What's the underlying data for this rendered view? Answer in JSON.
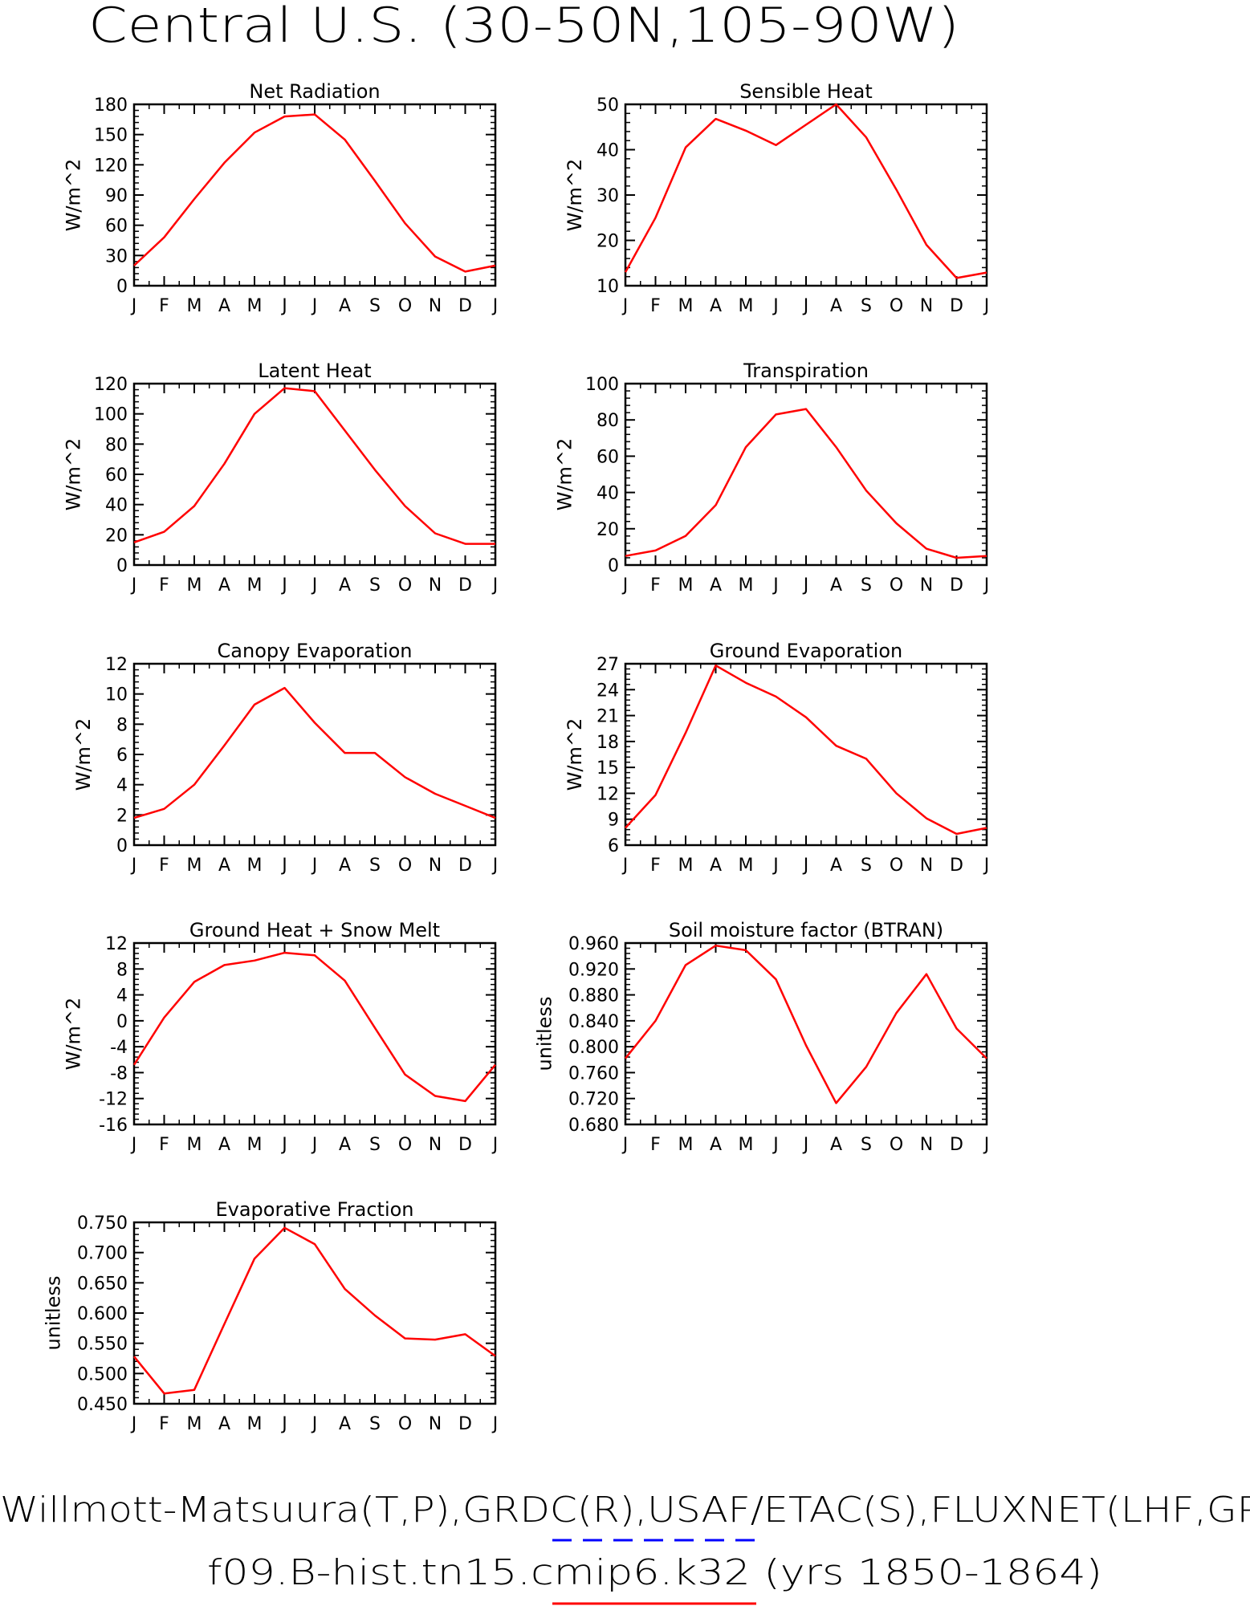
{
  "figure": {
    "title": "Central U.S. (30-50N,105-90W)",
    "footer_line1": "Willmott-Matsuura(T,P),GRDC(R),USAF/ETAC(S),FLUXNET(LHF,GP",
    "footer_line2": "f09.B-hist.tn15.cmip6.k32 (yrs 1850-1864)",
    "legend_line_colors": [
      "#0000ff",
      "#ff0000"
    ]
  },
  "chart_data": [
    {
      "type": "line",
      "title": "Net Radiation",
      "ylabel": "W/m^2",
      "categories": [
        "J",
        "F",
        "M",
        "A",
        "M",
        "J",
        "J",
        "A",
        "S",
        "O",
        "N",
        "D",
        "J"
      ],
      "ylim": [
        0,
        180
      ],
      "yticks": [
        0,
        30,
        60,
        90,
        120,
        150,
        180
      ],
      "ytick_labels": [
        "0",
        "30",
        "60",
        "90",
        "120",
        "150",
        "180"
      ],
      "series": [
        {
          "color": "#ff0000",
          "values": [
            20,
            48,
            86,
            122,
            152,
            168,
            170,
            145,
            104,
            62,
            29,
            14,
            20
          ]
        }
      ]
    },
    {
      "type": "line",
      "title": "Sensible Heat",
      "ylabel": "W/m^2",
      "categories": [
        "J",
        "F",
        "M",
        "A",
        "M",
        "J",
        "J",
        "A",
        "S",
        "O",
        "N",
        "D",
        "J"
      ],
      "ylim": [
        10,
        50
      ],
      "yticks": [
        10,
        20,
        30,
        40,
        50
      ],
      "ytick_labels": [
        "10",
        "20",
        "30",
        "40",
        "50"
      ],
      "series": [
        {
          "color": "#ff0000",
          "values": [
            13,
            25,
            40.5,
            46.8,
            44.2,
            41,
            45.5,
            50,
            42.7,
            31.2,
            19,
            11.7,
            12.9
          ]
        }
      ]
    },
    {
      "type": "line",
      "title": "Latent Heat",
      "ylabel": "W/m^2",
      "categories": [
        "J",
        "F",
        "M",
        "A",
        "M",
        "J",
        "J",
        "A",
        "S",
        "O",
        "N",
        "D",
        "J"
      ],
      "ylim": [
        0,
        120
      ],
      "yticks": [
        0,
        20,
        40,
        60,
        80,
        100,
        120
      ],
      "ytick_labels": [
        "0",
        "20",
        "40",
        "60",
        "80",
        "100",
        "120"
      ],
      "series": [
        {
          "color": "#ff0000",
          "values": [
            15,
            22,
            39,
            67,
            100,
            117,
            115,
            89,
            63,
            39,
            21,
            14,
            14
          ]
        }
      ]
    },
    {
      "type": "line",
      "title": "Transpiration",
      "ylabel": "W/m^2",
      "categories": [
        "J",
        "F",
        "M",
        "A",
        "M",
        "J",
        "J",
        "A",
        "S",
        "O",
        "N",
        "D",
        "J"
      ],
      "ylim": [
        0,
        100
      ],
      "yticks": [
        0,
        20,
        40,
        60,
        80,
        100
      ],
      "ytick_labels": [
        "0",
        "20",
        "40",
        "60",
        "80",
        "100"
      ],
      "series": [
        {
          "color": "#ff0000",
          "values": [
            5,
            8,
            16,
            33,
            65,
            83,
            86,
            65,
            41,
            23,
            9,
            4,
            5
          ]
        }
      ]
    },
    {
      "type": "line",
      "title": "Canopy Evaporation",
      "ylabel": "W/m^2",
      "categories": [
        "J",
        "F",
        "M",
        "A",
        "M",
        "J",
        "J",
        "A",
        "S",
        "O",
        "N",
        "D",
        "J"
      ],
      "ylim": [
        0,
        12
      ],
      "yticks": [
        0,
        2,
        4,
        6,
        8,
        10,
        12
      ],
      "ytick_labels": [
        "0",
        "2",
        "4",
        "6",
        "8",
        "10",
        "12"
      ],
      "series": [
        {
          "color": "#ff0000",
          "values": [
            1.8,
            2.4,
            4.0,
            6.6,
            9.3,
            10.4,
            8.1,
            6.1,
            6.1,
            4.5,
            3.4,
            2.6,
            1.8
          ]
        }
      ]
    },
    {
      "type": "line",
      "title": "Ground Evaporation",
      "ylabel": "W/m^2",
      "categories": [
        "J",
        "F",
        "M",
        "A",
        "M",
        "J",
        "J",
        "A",
        "S",
        "O",
        "N",
        "D",
        "J"
      ],
      "ylim": [
        6,
        27
      ],
      "yticks": [
        6,
        9,
        12,
        15,
        18,
        21,
        24,
        27
      ],
      "ytick_labels": [
        "6",
        "9",
        "12",
        "15",
        "18",
        "21",
        "24",
        "27"
      ],
      "series": [
        {
          "color": "#ff0000",
          "values": [
            8,
            11.8,
            19,
            26.8,
            24.8,
            23.2,
            20.8,
            17.5,
            16,
            12,
            9.1,
            7.3,
            8
          ]
        }
      ]
    },
    {
      "type": "line",
      "title": "Ground Heat + Snow Melt",
      "ylabel": "W/m^2",
      "categories": [
        "J",
        "F",
        "M",
        "A",
        "M",
        "J",
        "J",
        "A",
        "S",
        "O",
        "N",
        "D",
        "J"
      ],
      "ylim": [
        -16,
        12
      ],
      "yticks": [
        -16,
        -12,
        -8,
        -4,
        0,
        4,
        8,
        12
      ],
      "ytick_labels": [
        "-16",
        "-12",
        "-8",
        "-4",
        "0",
        "4",
        "8",
        "12"
      ],
      "series": [
        {
          "color": "#ff0000",
          "values": [
            -6.8,
            0.5,
            6,
            8.6,
            9.3,
            10.5,
            10.1,
            6.2,
            -1.1,
            -8.3,
            -11.6,
            -12.4,
            -6.8
          ]
        }
      ]
    },
    {
      "type": "line",
      "title": "Soil moisture factor (BTRAN)",
      "ylabel": "unitless",
      "categories": [
        "J",
        "F",
        "M",
        "A",
        "M",
        "J",
        "J",
        "A",
        "S",
        "O",
        "N",
        "D",
        "J"
      ],
      "ylim": [
        0.68,
        0.96
      ],
      "yticks": [
        0.68,
        0.72,
        0.76,
        0.8,
        0.84,
        0.88,
        0.92,
        0.96
      ],
      "ytick_labels": [
        "0.680",
        "0.720",
        "0.760",
        "0.800",
        "0.840",
        "0.880",
        "0.920",
        "0.960"
      ],
      "series": [
        {
          "color": "#ff0000",
          "values": [
            0.782,
            0.84,
            0.926,
            0.956,
            0.949,
            0.904,
            0.802,
            0.713,
            0.769,
            0.852,
            0.912,
            0.828,
            0.782
          ]
        }
      ]
    },
    {
      "type": "line",
      "title": "Evaporative Fraction",
      "ylabel": "unitless",
      "categories": [
        "J",
        "F",
        "M",
        "A",
        "M",
        "J",
        "J",
        "A",
        "S",
        "O",
        "N",
        "D",
        "J"
      ],
      "ylim": [
        0.45,
        0.75
      ],
      "yticks": [
        0.45,
        0.5,
        0.55,
        0.6,
        0.65,
        0.7,
        0.75
      ],
      "ytick_labels": [
        "0.450",
        "0.500",
        "0.550",
        "0.600",
        "0.650",
        "0.700",
        "0.750"
      ],
      "series": [
        {
          "color": "#ff0000",
          "values": [
            0.528,
            0.467,
            0.473,
            0.582,
            0.69,
            0.741,
            0.714,
            0.64,
            0.596,
            0.558,
            0.556,
            0.565,
            0.529
          ]
        }
      ]
    }
  ]
}
